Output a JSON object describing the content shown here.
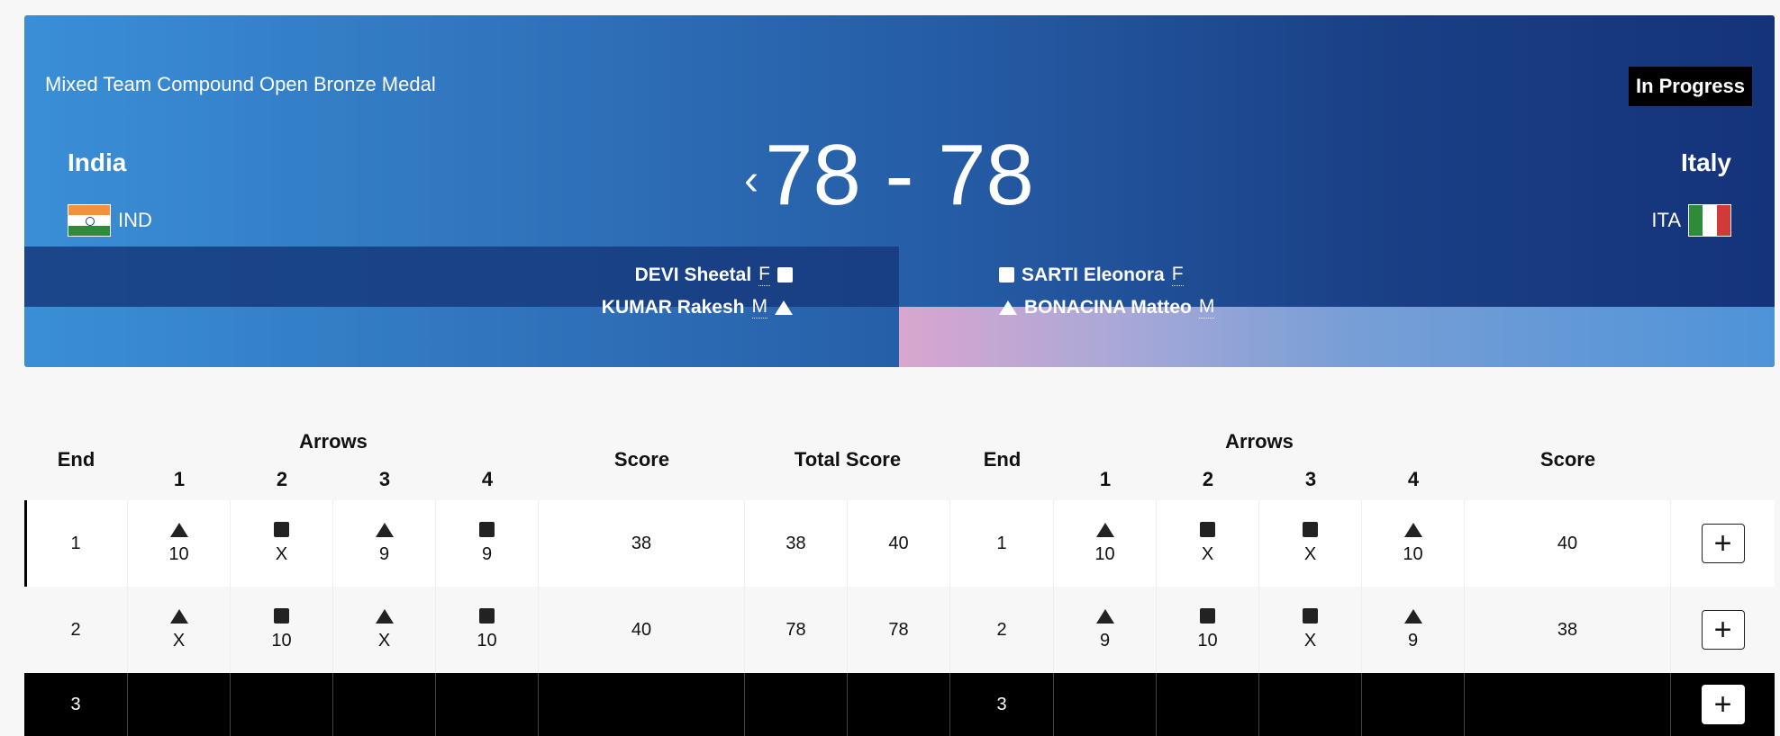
{
  "header": {
    "event_title": "Mixed Team Compound Open Bronze Medal",
    "status": "In Progress",
    "score": "78 - 78",
    "chevron": "‹",
    "left_team": {
      "name": "India",
      "code": "IND"
    },
    "right_team": {
      "name": "Italy",
      "code": "ITA"
    },
    "left_athletes": [
      {
        "name": "DEVI Sheetal",
        "gender": "F",
        "symbol": "square"
      },
      {
        "name": "KUMAR Rakesh",
        "gender": "M",
        "symbol": "triangle"
      }
    ],
    "right_athletes": [
      {
        "name": "SARTI Eleonora",
        "gender": "F",
        "symbol": "square"
      },
      {
        "name": "BONACINA Matteo",
        "gender": "M",
        "symbol": "triangle"
      }
    ]
  },
  "table": {
    "headers": {
      "end": "End",
      "arrows": "Arrows",
      "score": "Score",
      "total_score": "Total Score",
      "arrow_numbers": [
        "1",
        "2",
        "3",
        "4"
      ]
    },
    "rows": [
      {
        "end": "1",
        "left_arrows": [
          {
            "sym": "triangle",
            "val": "10"
          },
          {
            "sym": "square",
            "val": "X"
          },
          {
            "sym": "triangle",
            "val": "9"
          },
          {
            "sym": "square",
            "val": "9"
          }
        ],
        "left_score": "38",
        "left_total": "38",
        "right_total": "40",
        "right_end": "1",
        "right_arrows": [
          {
            "sym": "triangle",
            "val": "10"
          },
          {
            "sym": "square",
            "val": "X"
          },
          {
            "sym": "square",
            "val": "X"
          },
          {
            "sym": "triangle",
            "val": "10"
          }
        ],
        "right_score": "40"
      },
      {
        "end": "2",
        "left_arrows": [
          {
            "sym": "triangle",
            "val": "X"
          },
          {
            "sym": "square",
            "val": "10"
          },
          {
            "sym": "triangle",
            "val": "X"
          },
          {
            "sym": "square",
            "val": "10"
          }
        ],
        "left_score": "40",
        "left_total": "78",
        "right_total": "78",
        "right_end": "2",
        "right_arrows": [
          {
            "sym": "triangle",
            "val": "9"
          },
          {
            "sym": "square",
            "val": "10"
          },
          {
            "sym": "square",
            "val": "X"
          },
          {
            "sym": "triangle",
            "val": "9"
          }
        ],
        "right_score": "38"
      },
      {
        "end": "3",
        "right_end": "3"
      }
    ],
    "expand_label": "+"
  }
}
